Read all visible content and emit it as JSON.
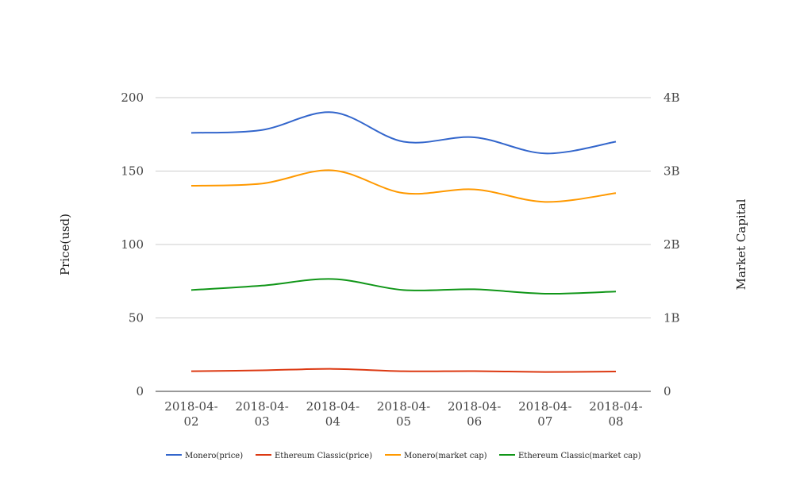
{
  "chart_data": {
    "type": "line",
    "x": [
      "2018-04-02",
      "2018-04-03",
      "2018-04-04",
      "2018-04-05",
      "2018-04-06",
      "2018-04-07",
      "2018-04-08"
    ],
    "x_tick_labels": [
      [
        "2018-04-",
        "02"
      ],
      [
        "2018-04-",
        "03"
      ],
      [
        "2018-04-",
        "04"
      ],
      [
        "2018-04-",
        "05"
      ],
      [
        "2018-04-",
        "06"
      ],
      [
        "2018-04-",
        "07"
      ],
      [
        "2018-04-",
        "08"
      ]
    ],
    "ylabel": "Price(usd)",
    "y2label": "Market Capital",
    "ylim": [
      0,
      200
    ],
    "y2lim": [
      0,
      4000000000
    ],
    "y_ticks": [
      "0",
      "50",
      "100",
      "150",
      "200"
    ],
    "y2_ticks": [
      "0",
      "1B",
      "2B",
      "3B",
      "4B"
    ],
    "grid": true,
    "legend_position": "bottom",
    "series": [
      {
        "name": "Monero(price)",
        "axis": "left",
        "color": "#3366cc",
        "values": [
          176,
          178,
          190,
          170,
          173,
          162,
          170
        ]
      },
      {
        "name": "Ethereum Classic(price)",
        "axis": "left",
        "color": "#dc3912",
        "values": [
          13.7,
          14.3,
          15.3,
          13.7,
          13.8,
          13.2,
          13.5
        ]
      },
      {
        "name": "Monero(market cap)",
        "axis": "right",
        "color": "#ff9900",
        "values": [
          2800000000,
          2830000000,
          3010000000,
          2700000000,
          2750000000,
          2580000000,
          2700000000
        ]
      },
      {
        "name": "Ethereum Classic(market cap)",
        "axis": "right",
        "color": "#109618",
        "values": [
          1380000000,
          1440000000,
          1530000000,
          1380000000,
          1390000000,
          1330000000,
          1360000000
        ]
      }
    ]
  }
}
